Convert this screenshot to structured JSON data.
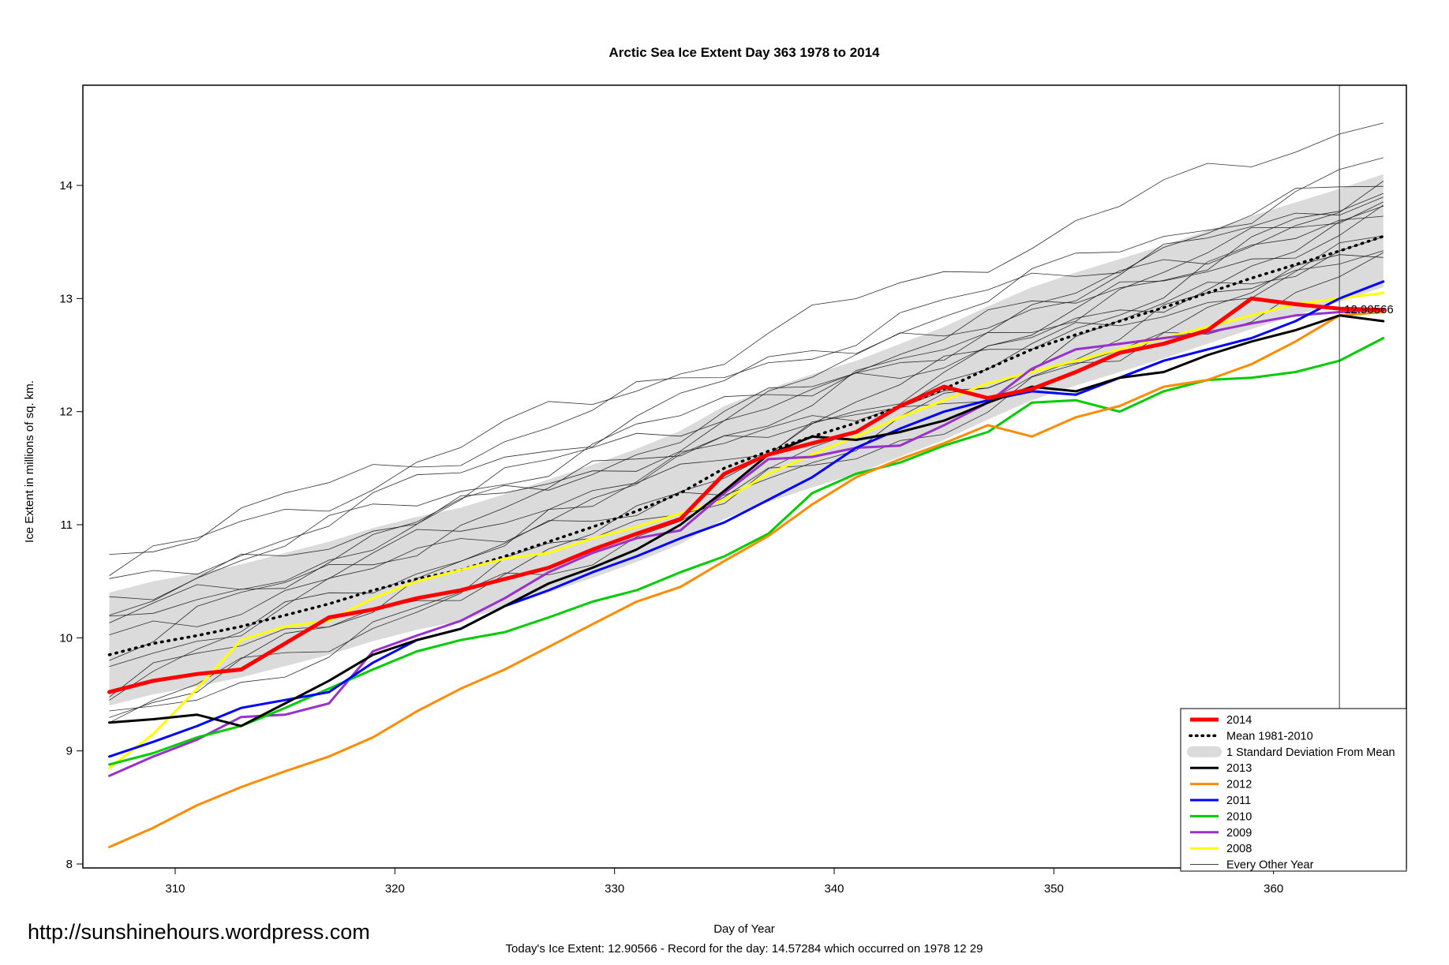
{
  "watermark": "http://sunshinehours.wordpress.com",
  "footer_note": "Today's Ice Extent: 12.90566  - Record for the day: 14.57284 which occurred on 1978 12 29",
  "annotation": {
    "label": "12.90566",
    "day": 363,
    "value": 12.90566,
    "color": "#FF0000"
  },
  "record_line_day": 363,
  "chart_data": {
    "type": "line",
    "title": "Arctic Sea Ice Extent Day 363 1978 to 2014",
    "xlabel": "Day of Year",
    "ylabel": "Ice Extent in millions of sq. km.",
    "xlim": [
      305.8,
      366.2
    ],
    "ylim": [
      7.96,
      14.89
    ],
    "xticks": [
      310,
      320,
      330,
      340,
      350,
      360
    ],
    "yticks": [
      8,
      9,
      10,
      11,
      12,
      13,
      14
    ],
    "grid": false,
    "legend_position": "bottom-right",
    "x": [
      307,
      309,
      311,
      313,
      315,
      317,
      319,
      321,
      323,
      325,
      327,
      329,
      331,
      333,
      335,
      337,
      339,
      341,
      343,
      345,
      347,
      349,
      351,
      353,
      355,
      357,
      359,
      361,
      363,
      365
    ],
    "band": {
      "name": "1 Standard Deviation From Mean",
      "color": "#DBDBDB",
      "upper": [
        10.4,
        10.5,
        10.57,
        10.65,
        10.75,
        10.85,
        10.97,
        11.07,
        11.15,
        11.27,
        11.4,
        11.53,
        11.67,
        11.83,
        12.05,
        12.2,
        12.33,
        12.45,
        12.6,
        12.75,
        12.93,
        13.1,
        13.23,
        13.35,
        13.47,
        13.6,
        13.73,
        13.85,
        13.97,
        14.1
      ],
      "lower": [
        9.4,
        9.5,
        9.57,
        9.65,
        9.75,
        9.85,
        9.97,
        10.07,
        10.15,
        10.27,
        10.4,
        10.53,
        10.67,
        10.83,
        11.05,
        11.2,
        11.33,
        11.45,
        11.6,
        11.75,
        11.93,
        12.1,
        12.23,
        12.35,
        12.47,
        12.6,
        12.73,
        12.85,
        12.97,
        13.1
      ]
    },
    "mean": {
      "name": "Mean 1981-2010",
      "color": "#000000",
      "style": "dotted",
      "values": [
        9.85,
        9.95,
        10.02,
        10.1,
        10.2,
        10.3,
        10.42,
        10.52,
        10.6,
        10.72,
        10.85,
        10.98,
        11.12,
        11.28,
        11.5,
        11.65,
        11.78,
        11.9,
        12.05,
        12.2,
        12.38,
        12.55,
        12.68,
        12.8,
        12.92,
        13.05,
        13.18,
        13.3,
        13.42,
        13.55
      ]
    },
    "series": [
      {
        "name": "2014",
        "color": "#FF0000",
        "width": 5,
        "values": [
          9.52,
          9.62,
          9.68,
          9.72,
          9.95,
          10.18,
          10.25,
          10.35,
          10.42,
          10.52,
          10.62,
          10.78,
          10.92,
          11.05,
          11.45,
          11.62,
          11.72,
          11.82,
          12.05,
          12.22,
          12.12,
          12.2,
          12.35,
          12.52,
          12.6,
          12.72,
          13.0,
          12.95,
          12.91,
          12.9
        ]
      },
      {
        "name": "2013",
        "color": "#000000",
        "width": 3,
        "values": [
          9.25,
          9.28,
          9.32,
          9.22,
          9.42,
          9.62,
          9.85,
          9.98,
          10.08,
          10.28,
          10.48,
          10.62,
          10.78,
          11.0,
          11.3,
          11.62,
          11.78,
          11.75,
          11.82,
          11.92,
          12.08,
          12.22,
          12.18,
          12.3,
          12.35,
          12.5,
          12.62,
          12.72,
          12.85,
          12.8
        ]
      },
      {
        "name": "2012",
        "color": "#FF8C00",
        "width": 3,
        "values": [
          8.15,
          8.32,
          8.52,
          8.68,
          8.82,
          8.95,
          9.12,
          9.35,
          9.55,
          9.72,
          9.92,
          10.12,
          10.32,
          10.45,
          10.68,
          10.9,
          11.18,
          11.42,
          11.58,
          11.72,
          11.88,
          11.78,
          11.95,
          12.05,
          12.22,
          12.28,
          12.42,
          12.62,
          12.85,
          12.88
        ]
      },
      {
        "name": "2011",
        "color": "#0000FF",
        "width": 3,
        "values": [
          8.95,
          9.08,
          9.22,
          9.38,
          9.45,
          9.52,
          9.78,
          9.98,
          10.08,
          10.28,
          10.42,
          10.58,
          10.72,
          10.88,
          11.02,
          11.22,
          11.42,
          11.68,
          11.85,
          12.0,
          12.1,
          12.18,
          12.15,
          12.3,
          12.45,
          12.55,
          12.65,
          12.8,
          13.0,
          13.15
        ]
      },
      {
        "name": "2010",
        "color": "#00CC00",
        "width": 3,
        "values": [
          8.88,
          8.98,
          9.12,
          9.22,
          9.38,
          9.55,
          9.72,
          9.88,
          9.98,
          10.05,
          10.18,
          10.32,
          10.42,
          10.58,
          10.72,
          10.92,
          11.28,
          11.45,
          11.55,
          11.7,
          11.82,
          12.08,
          12.1,
          12.0,
          12.18,
          12.28,
          12.3,
          12.35,
          12.45,
          12.65
        ]
      },
      {
        "name": "2009",
        "color": "#9932CC",
        "width": 3,
        "values": [
          8.78,
          8.95,
          9.1,
          9.3,
          9.32,
          9.42,
          9.88,
          10.02,
          10.15,
          10.35,
          10.58,
          10.75,
          10.88,
          10.95,
          11.28,
          11.58,
          11.6,
          11.68,
          11.7,
          11.88,
          12.08,
          12.38,
          12.55,
          12.6,
          12.65,
          12.7,
          12.78,
          12.85,
          12.88,
          12.9
        ]
      },
      {
        "name": "2008",
        "color": "#FFFF00",
        "width": 3,
        "values": [
          8.85,
          9.15,
          9.55,
          9.98,
          10.1,
          10.15,
          10.35,
          10.5,
          10.6,
          10.7,
          10.75,
          10.88,
          10.98,
          11.1,
          11.22,
          11.45,
          11.62,
          11.78,
          11.95,
          12.1,
          12.25,
          12.35,
          12.45,
          12.55,
          12.65,
          12.75,
          12.85,
          12.95,
          13.0,
          13.05
        ]
      }
    ],
    "background_series_name": "Every Other Year",
    "background_lines": [
      {
        "start": 10.55,
        "end": 14.65
      },
      {
        "start": 10.4,
        "end": 14.2
      },
      {
        "start": 10.75,
        "end": 14.05
      },
      {
        "start": 10.2,
        "end": 14.0
      },
      {
        "start": 10.05,
        "end": 13.95
      },
      {
        "start": 10.35,
        "end": 13.85
      },
      {
        "start": 9.9,
        "end": 13.9
      },
      {
        "start": 10.1,
        "end": 13.75
      },
      {
        "start": 9.75,
        "end": 13.7
      },
      {
        "start": 9.6,
        "end": 13.8
      },
      {
        "start": 9.5,
        "end": 13.6
      },
      {
        "start": 9.95,
        "end": 13.5
      },
      {
        "start": 9.35,
        "end": 13.45
      },
      {
        "start": 9.25,
        "end": 13.55
      },
      {
        "start": 9.2,
        "end": 13.35
      }
    ],
    "legend": [
      {
        "label": "2014",
        "swatch": "line",
        "color": "#FF0000",
        "width": 5
      },
      {
        "label": "Mean 1981-2010",
        "swatch": "dotted",
        "color": "#000000",
        "width": 3.5
      },
      {
        "label": "1 Standard Deviation From Mean",
        "swatch": "band",
        "color": "#DBDBDB",
        "width": 0
      },
      {
        "label": "2013",
        "swatch": "line",
        "color": "#000000",
        "width": 3
      },
      {
        "label": "2012",
        "swatch": "line",
        "color": "#FF8C00",
        "width": 3
      },
      {
        "label": "2011",
        "swatch": "line",
        "color": "#0000FF",
        "width": 3
      },
      {
        "label": "2010",
        "swatch": "line",
        "color": "#00CC00",
        "width": 3
      },
      {
        "label": "2009",
        "swatch": "line",
        "color": "#9932CC",
        "width": 3
      },
      {
        "label": "2008",
        "swatch": "line",
        "color": "#FFFF00",
        "width": 3
      },
      {
        "label": "Every Other Year",
        "swatch": "thin",
        "color": "#000000",
        "width": 0.8
      }
    ]
  }
}
